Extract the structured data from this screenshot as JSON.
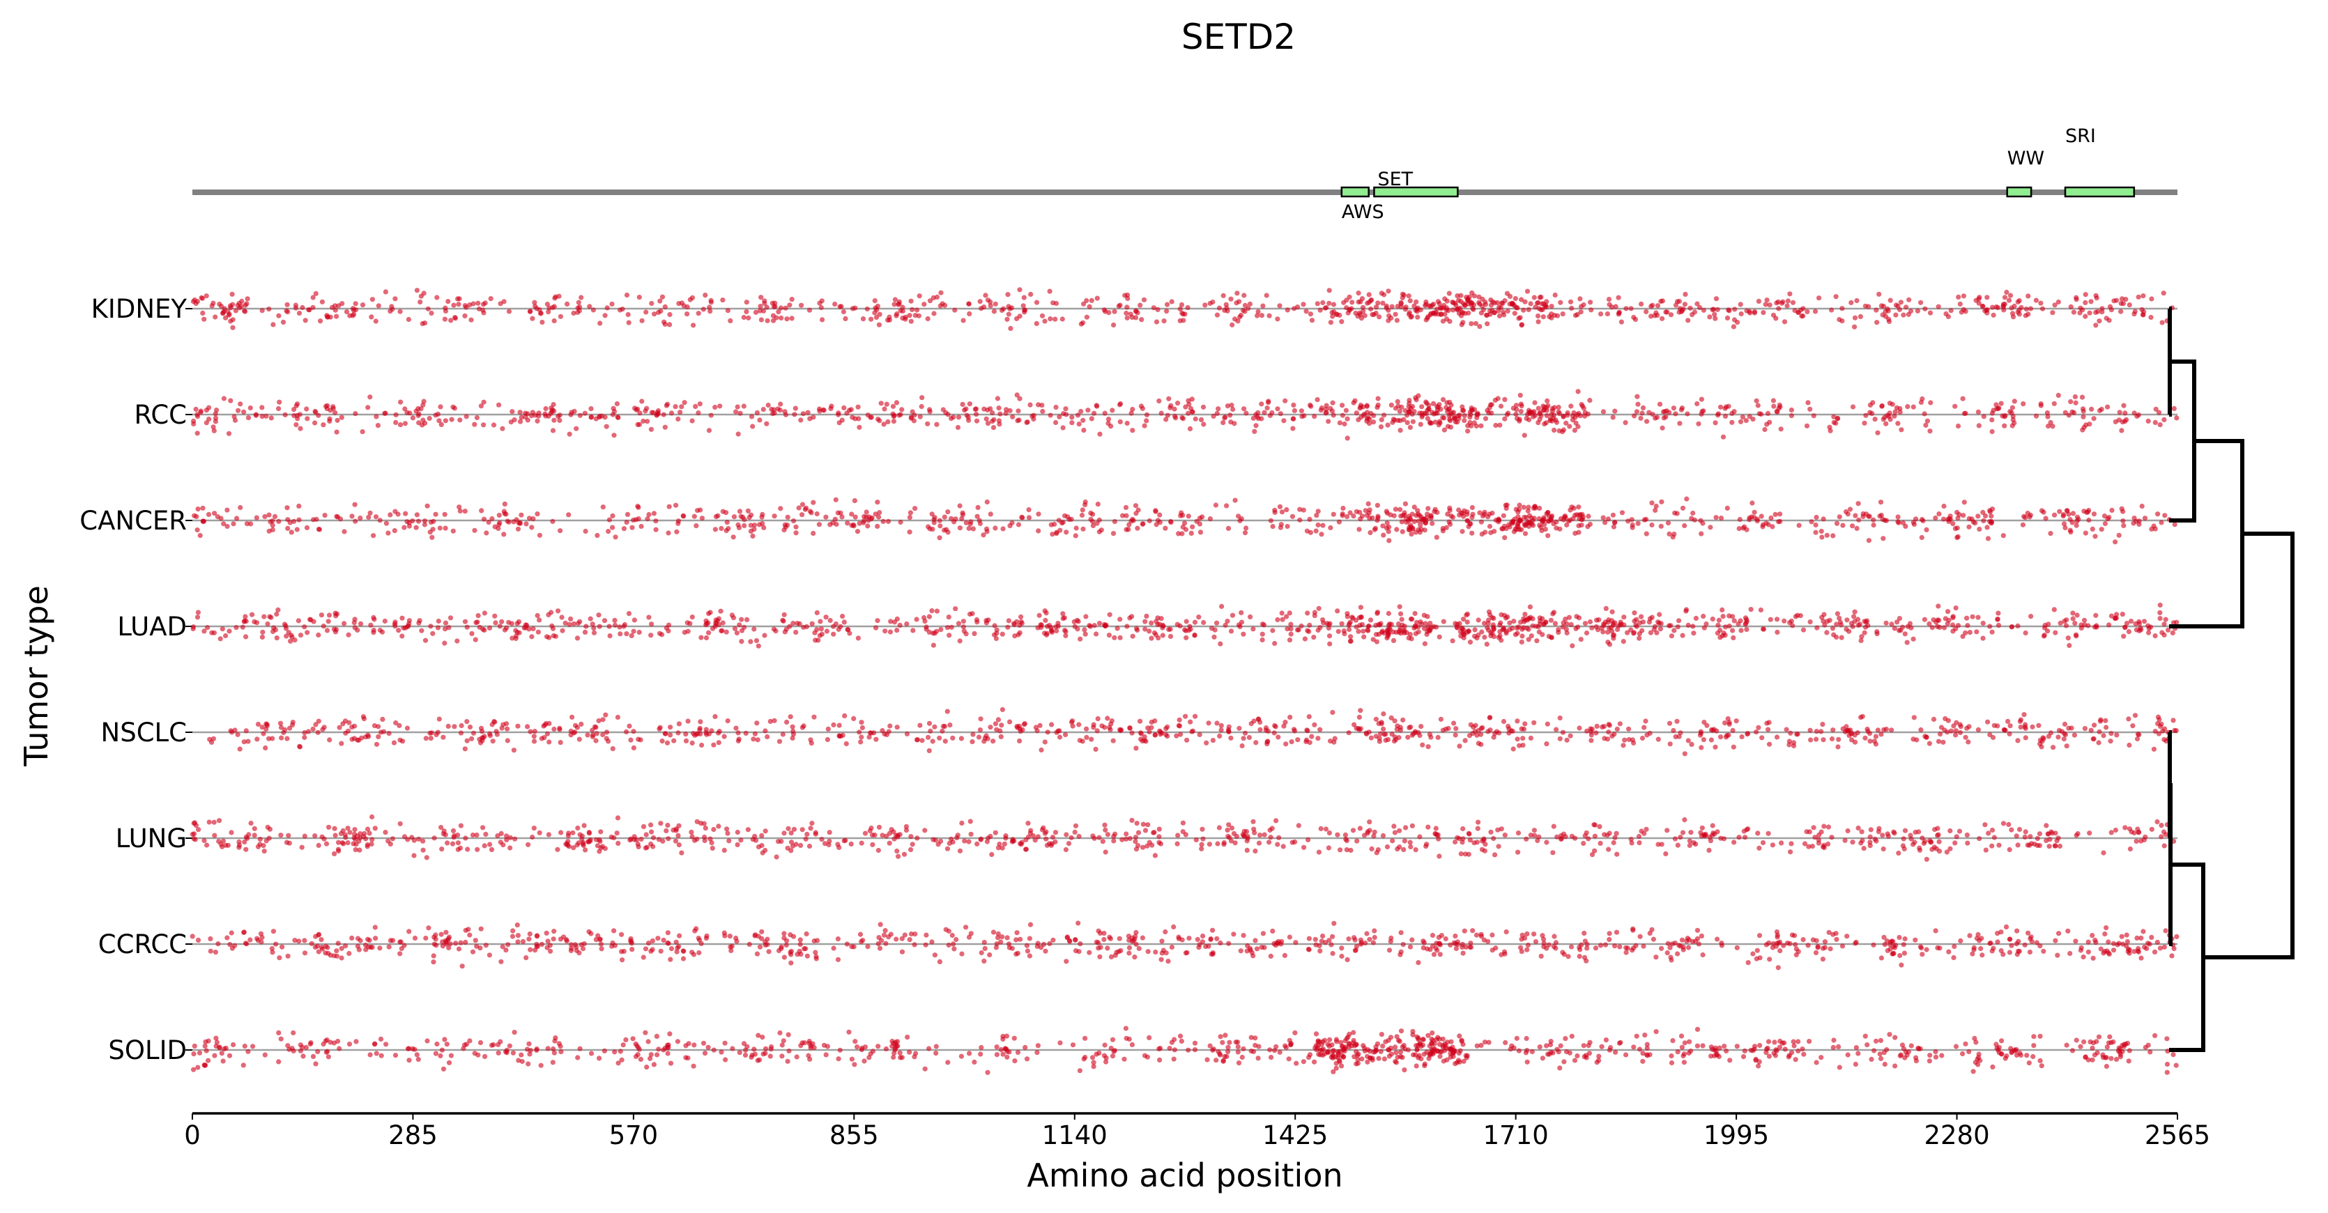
{
  "chart_data": {
    "type": "scatter",
    "title": "SETD2",
    "xlabel": "Amino acid position",
    "ylabel": "Tumor type",
    "xlim": [
      0,
      2565
    ],
    "xticks": [
      "0",
      "285",
      "570",
      "855",
      "1140",
      "1425",
      "1710",
      "1995",
      "2280",
      "2565"
    ],
    "grid": false,
    "point_color": "#d0021b",
    "point_alpha": 0.6,
    "protein": {
      "length": 2565,
      "line_color": "#808080",
      "domain_color": "#90ee90",
      "domains": [
        {
          "name": "AWS",
          "start": 1485,
          "end": 1520,
          "label_pos": "below"
        },
        {
          "name": "SET",
          "start": 1527,
          "end": 1635,
          "label_pos": "above"
        },
        {
          "name": "WW",
          "start": 2345,
          "end": 2376,
          "label_pos": "above-high"
        },
        {
          "name": "SRI",
          "start": 2420,
          "end": 2509,
          "label_pos": "above-higher"
        }
      ]
    },
    "tracks": [
      {
        "name": "KIDNEY",
        "n_points": 900,
        "hotspot": [
          1500,
          1750
        ]
      },
      {
        "name": "RCC",
        "n_points": 900,
        "hotspot": [
          1500,
          1800
        ]
      },
      {
        "name": "CANCER",
        "n_points": 880,
        "hotspot": [
          1500,
          1800
        ]
      },
      {
        "name": "LUAD",
        "n_points": 1000,
        "hotspot": [
          1450,
          1850
        ]
      },
      {
        "name": "NSCLC",
        "n_points": 780,
        "hotspot": [
          0,
          0
        ]
      },
      {
        "name": "LUNG",
        "n_points": 780,
        "hotspot": [
          0,
          0
        ]
      },
      {
        "name": "CCRCC",
        "n_points": 800,
        "hotspot": [
          0,
          0
        ]
      },
      {
        "name": "SOLID",
        "n_points": 860,
        "hotspot": [
          1450,
          1650
        ]
      }
    ],
    "dendrogram": {
      "merges": [
        {
          "id": "c1",
          "left": "KIDNEY",
          "right": "RCC",
          "height": 1
        },
        {
          "id": "c2",
          "left": "c1",
          "right": "CANCER",
          "height": 36
        },
        {
          "id": "c3",
          "left": "c2",
          "right": "LUAD",
          "height": 105
        },
        {
          "id": "c4",
          "left": "NSCLC",
          "right": "LUNG",
          "height": 1
        },
        {
          "id": "c5",
          "left": "c4",
          "right": "CCRCC",
          "height": 2
        },
        {
          "id": "c6",
          "left": "c5",
          "right": "SOLID",
          "height": 49
        },
        {
          "id": "c7",
          "left": "c3",
          "right": "c6",
          "height": 177
        }
      ]
    }
  }
}
